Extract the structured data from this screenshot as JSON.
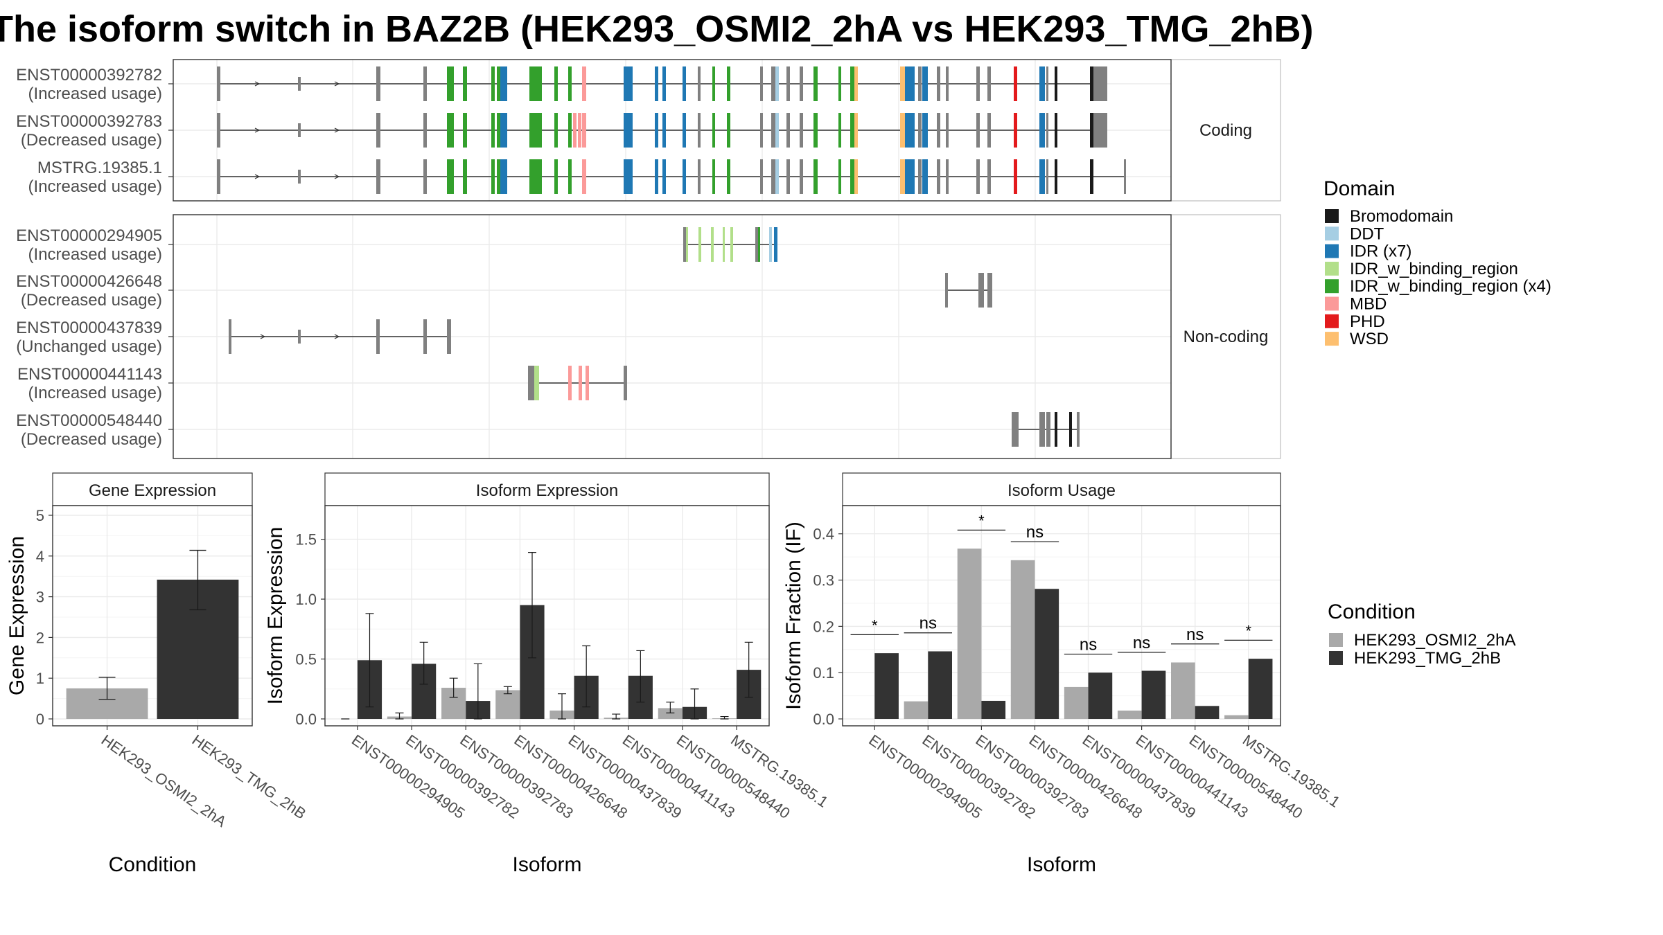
{
  "title": "The isoform switch in BAZ2B (HEK293_OSMI2_2hA vs HEK293_TMG_2hB)",
  "colors": {
    "Bromodomain": "#1a1a1a",
    "DDT": "#a6cee3",
    "IDR (x7)": "#1f78b4",
    "IDR_w_binding_region": "#b2df8a",
    "IDR_w_binding_region (x4)": "#33a02c",
    "MBD": "#fb9a99",
    "PHD": "#e31a1c",
    "WSD": "#fdbf6f",
    "exon": "#808080",
    "cond1": "#a9a9a9",
    "cond2": "#333333"
  },
  "structure": {
    "facet_labels": [
      "Coding",
      "Non-coding"
    ],
    "coding": [
      {
        "id": "ENST00000392782",
        "usage": "(Increased usage)"
      },
      {
        "id": "ENST00000392783",
        "usage": "(Decreased usage)"
      },
      {
        "id": "MSTRG.19385.1",
        "usage": "(Increased usage)"
      }
    ],
    "noncoding": [
      {
        "id": "ENST00000294905",
        "usage": "(Increased usage)"
      },
      {
        "id": "ENST00000426648",
        "usage": "(Decreased usage)"
      },
      {
        "id": "ENST00000437839",
        "usage": "(Unchanged usage)"
      },
      {
        "id": "ENST00000441143",
        "usage": "(Increased usage)"
      },
      {
        "id": "ENST00000548440",
        "usage": "(Decreased usage)"
      }
    ]
  },
  "legend_domain": {
    "title": "Domain",
    "items": [
      "Bromodomain",
      "DDT",
      "IDR (x7)",
      "IDR_w_binding_region",
      "IDR_w_binding_region (x4)",
      "MBD",
      "PHD",
      "WSD"
    ]
  },
  "legend_condition": {
    "title": "Condition",
    "items": [
      "HEK293_OSMI2_2hA",
      "HEK293_TMG_2hB"
    ]
  },
  "chart_data": [
    {
      "type": "bar",
      "title": "Gene Expression",
      "xlabel": "Condition",
      "ylabel": "Gene Expression",
      "categories": [
        "HEK293_OSMI2_2hA",
        "HEK293_TMG_2hB"
      ],
      "values": [
        0.75,
        3.42
      ],
      "errors": [
        [
          0.48,
          1.02
        ],
        [
          2.68,
          4.14
        ]
      ],
      "ylim": [
        0,
        5
      ],
      "yticks": [
        "0",
        "1",
        "2",
        "3",
        "4",
        "5"
      ]
    },
    {
      "type": "bar",
      "title": "Isoform Expression",
      "xlabel": "Isoform",
      "ylabel": "Isoform Expression",
      "categories": [
        "ENST00000294905",
        "ENST00000392782",
        "ENST00000392783",
        "ENST00000426648",
        "ENST00000437839",
        "ENST00000441143",
        "ENST00000548440",
        "MSTRG.19385.1"
      ],
      "series": [
        {
          "name": "HEK293_OSMI2_2hA",
          "values": [
            0.0,
            0.02,
            0.26,
            0.24,
            0.07,
            0.01,
            0.09,
            0.005
          ],
          "errors": [
            [
              0.0,
              0.0
            ],
            [
              0.0,
              0.05
            ],
            [
              0.18,
              0.34
            ],
            [
              0.21,
              0.27
            ],
            [
              0.0,
              0.21
            ],
            [
              0.0,
              0.04
            ],
            [
              0.05,
              0.14
            ],
            [
              0.0,
              0.02
            ]
          ]
        },
        {
          "name": "HEK293_TMG_2hB",
          "values": [
            0.49,
            0.46,
            0.15,
            0.95,
            0.36,
            0.36,
            0.1,
            0.41
          ],
          "errors": [
            [
              0.1,
              0.88
            ],
            [
              0.29,
              0.64
            ],
            [
              0.0,
              0.46
            ],
            [
              0.51,
              1.39
            ],
            [
              0.1,
              0.61
            ],
            [
              0.14,
              0.57
            ],
            [
              0.0,
              0.25
            ],
            [
              0.18,
              0.64
            ]
          ]
        }
      ],
      "ylim": [
        0,
        1.7
      ],
      "yticks": [
        "0.0",
        "0.5",
        "1.0",
        "1.5"
      ]
    },
    {
      "type": "bar",
      "title": "Isoform Usage",
      "xlabel": "Isoform",
      "ylabel": "Isoform Fraction (IF)",
      "categories": [
        "ENST00000294905",
        "ENST00000392782",
        "ENST00000392783",
        "ENST00000426648",
        "ENST00000437839",
        "ENST00000441143",
        "ENST00000548440",
        "MSTRG.19385.1"
      ],
      "series": [
        {
          "name": "HEK293_OSMI2_2hA",
          "values": [
            0.0,
            0.038,
            0.368,
            0.343,
            0.069,
            0.018,
            0.122,
            0.008
          ]
        },
        {
          "name": "HEK293_TMG_2hB",
          "values": [
            0.142,
            0.146,
            0.039,
            0.281,
            0.1,
            0.104,
            0.028,
            0.13
          ]
        }
      ],
      "significance": [
        "*",
        "ns",
        "*",
        "ns",
        "ns",
        "ns",
        "ns",
        "*"
      ],
      "ylim": [
        0,
        0.44
      ],
      "yticks": [
        "0.0",
        "0.1",
        "0.2",
        "0.3",
        "0.4"
      ]
    }
  ]
}
